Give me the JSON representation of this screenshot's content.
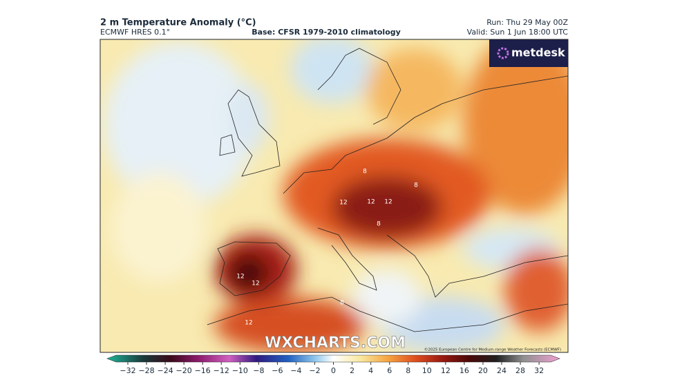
{
  "header": {
    "title": "2 m Temperature Anomaly (°C)",
    "model": "ECMWF HRES 0.1°",
    "base": "Base: CFSR 1979-2010 climatology",
    "run": "Run: Thu 29 May 00Z",
    "valid": "Valid: Sun 1 Jun 18:00 UTC"
  },
  "logo": {
    "text": "metdesk"
  },
  "map": {
    "watermark": "WXCHARTS.COM",
    "copyright": "©2025 European Centre for Medium-range Weather Forecasts (ECMWF)",
    "contour_labels": [
      "8",
      "12",
      "12",
      "12",
      "8",
      "8",
      "12",
      "12",
      "8",
      "12"
    ]
  },
  "colorbar": {
    "ticks": [
      "−32",
      "−28",
      "−24",
      "−20",
      "−16",
      "−12",
      "−10",
      "−8",
      "−6",
      "−4",
      "−2",
      "0",
      "2",
      "4",
      "6",
      "8",
      "10",
      "12",
      "16",
      "20",
      "24",
      "28",
      "32"
    ]
  }
}
